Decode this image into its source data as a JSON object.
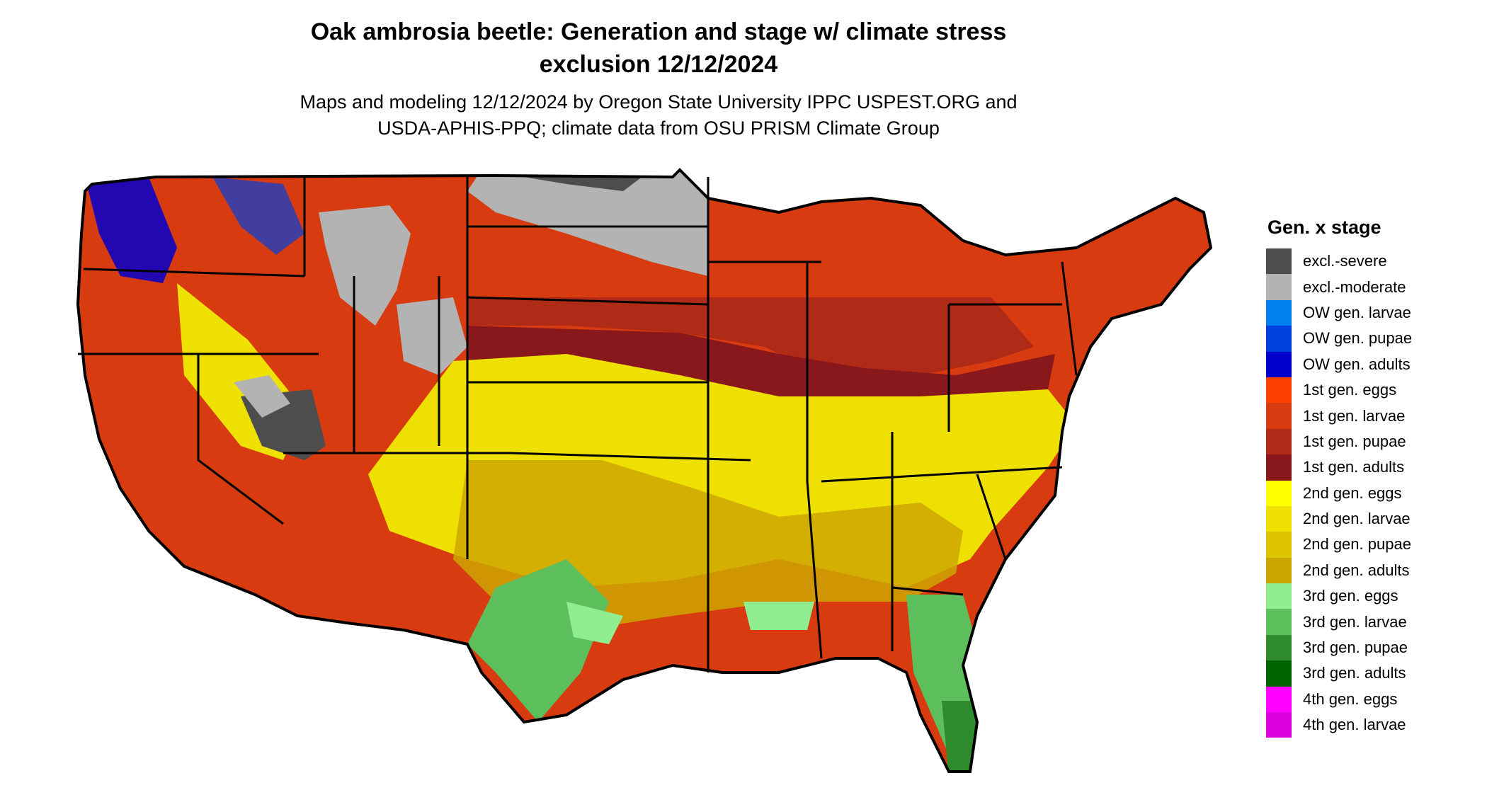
{
  "title_line1": "Oak ambrosia beetle: Generation and stage w/ climate stress",
  "title_line2": "exclusion 12/12/2024",
  "subtitle_line1": "Maps and modeling 12/12/2024 by Oregon State University IPPC USPEST.ORG and",
  "subtitle_line2": "USDA-APHIS-PPQ; climate data from OSU PRISM Climate Group",
  "legend": {
    "title": "Gen. x stage",
    "items": [
      {
        "label": "excl.-severe",
        "color": "#4d4d4d"
      },
      {
        "label": "excl.-moderate",
        "color": "#b3b3b3"
      },
      {
        "label": "OW gen. larvae",
        "color": "#0080ee"
      },
      {
        "label": "OW gen. pupae",
        "color": "#0040dd"
      },
      {
        "label": "OW gen. adults",
        "color": "#0000cc"
      },
      {
        "label": "1st gen. eggs",
        "color": "#ff4000"
      },
      {
        "label": "1st gen. larvae",
        "color": "#d93b10"
      },
      {
        "label": "1st gen. pupae",
        "color": "#b02a18"
      },
      {
        "label": "1st gen. adults",
        "color": "#88181c"
      },
      {
        "label": "2nd gen. eggs",
        "color": "#ffff00"
      },
      {
        "label": "2nd gen. larvae",
        "color": "#eee000"
      },
      {
        "label": "2nd gen. pupae",
        "color": "#ddc400"
      },
      {
        "label": "2nd gen. adults",
        "color": "#cca600"
      },
      {
        "label": "3rd gen. eggs",
        "color": "#90ee90"
      },
      {
        "label": "3rd gen. larvae",
        "color": "#5cbf5c"
      },
      {
        "label": "3rd gen. pupae",
        "color": "#2e8b2e"
      },
      {
        "label": "3rd gen. adults",
        "color": "#006400"
      },
      {
        "label": "4th gen. eggs",
        "color": "#ff00ff"
      },
      {
        "label": "4th gen. larvae",
        "color": "#dd00dd"
      }
    ]
  }
}
